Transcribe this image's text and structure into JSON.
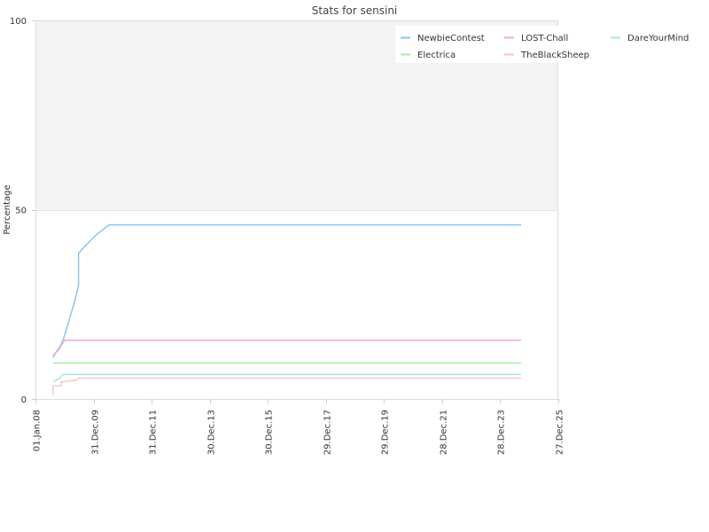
{
  "chart_data": {
    "type": "line",
    "title": "Stats for sensini",
    "ylabel": "Percentage",
    "xlabel": "",
    "ylim": [
      0,
      100
    ],
    "xlim": [
      "2008-01-01",
      "2025-12-27"
    ],
    "y_ticks": [
      0,
      50,
      100
    ],
    "x_ticks": [
      {
        "date": "2008-01-01",
        "label": "01.Jan.08"
      },
      {
        "date": "2009-12-31",
        "label": "31.Dec.09"
      },
      {
        "date": "2011-12-31",
        "label": "31.Dec.11"
      },
      {
        "date": "2013-12-30",
        "label": "30.Dec.13"
      },
      {
        "date": "2015-12-30",
        "label": "30.Dec.15"
      },
      {
        "date": "2017-12-29",
        "label": "29.Dec.17"
      },
      {
        "date": "2019-12-29",
        "label": "29.Dec.19"
      },
      {
        "date": "2021-12-28",
        "label": "28.Dec.21"
      },
      {
        "date": "2023-12-28",
        "label": "28.Dec.23"
      },
      {
        "date": "2025-12-27",
        "label": "27.Dec.25"
      }
    ],
    "background_band": {
      "from": 50,
      "to": 100,
      "color": "#f3f3f3"
    },
    "legend_position": "top-right",
    "series": [
      {
        "name": "NewbieContest",
        "color": "#8cc4ec",
        "points": [
          [
            "2008-08-10",
            11
          ],
          [
            "2008-09-20",
            12.5
          ],
          [
            "2008-11-10",
            14
          ],
          [
            "2008-12-20",
            16
          ],
          [
            "2009-03-01",
            21
          ],
          [
            "2009-05-10",
            26
          ],
          [
            "2009-06-25",
            30
          ],
          [
            "2009-06-25",
            38.5
          ],
          [
            "2009-09-20",
            40.5
          ],
          [
            "2010-01-15",
            43
          ],
          [
            "2010-06-10",
            45.5
          ],
          [
            "2010-07-20",
            46
          ],
          [
            "2024-09-15",
            46
          ]
        ]
      },
      {
        "name": "LOST-Chall",
        "color": "#f0a8d8",
        "points": [
          [
            "2008-08-10",
            11.5
          ],
          [
            "2008-10-20",
            13
          ],
          [
            "2008-12-01",
            14.5
          ],
          [
            "2009-01-01",
            15.5
          ],
          [
            "2024-09-15",
            15.5
          ]
        ]
      },
      {
        "name": "DareYourMind",
        "color": "#a8e4e4",
        "points": [
          [
            "2008-08-10",
            4.5
          ],
          [
            "2008-11-01",
            5.5
          ],
          [
            "2008-12-10",
            6.5
          ],
          [
            "2024-09-15",
            6.5
          ]
        ]
      },
      {
        "name": "Electrica",
        "color": "#a8eca8",
        "points": [
          [
            "2008-08-10",
            9.5
          ],
          [
            "2024-09-15",
            9.5
          ]
        ]
      },
      {
        "name": "TheBlackSheep",
        "color": "#f4c8c8",
        "points": [
          [
            "2008-08-10",
            1
          ],
          [
            "2008-08-10",
            3.5
          ],
          [
            "2008-11-20",
            3.5
          ],
          [
            "2008-11-20",
            4.5
          ],
          [
            "2009-06-01",
            5
          ],
          [
            "2009-06-20",
            5.5
          ],
          [
            "2024-09-15",
            5.5
          ]
        ]
      }
    ]
  }
}
